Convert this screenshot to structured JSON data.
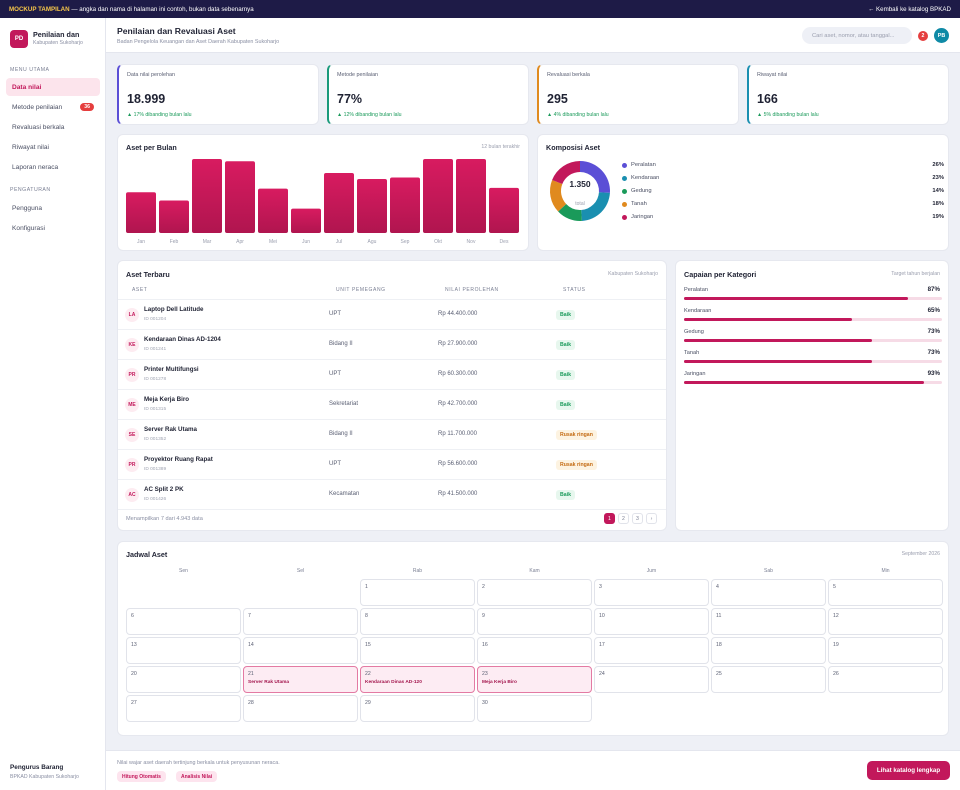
{
  "topbar": {
    "mockup_label": "MOCKUP TAMPILAN",
    "mockup_note": "— angka dan nama di halaman ini contoh, bukan data sebenarnya",
    "back_link": "← Kembali ke katalog BPKAD"
  },
  "brand": {
    "logo": "PD",
    "title": "Penilaian dan",
    "subtitle": "Kabupaten Sukoharjo"
  },
  "sidebar": {
    "main_label": "MENU UTAMA",
    "items": [
      {
        "label": "Data nilai"
      },
      {
        "label": "Metode penilaian",
        "badge": "36"
      },
      {
        "label": "Revaluasi berkala"
      },
      {
        "label": "Riwayat nilai"
      },
      {
        "label": "Laporan neraca"
      }
    ],
    "settings_label": "PENGATURAN",
    "settings_items": [
      {
        "label": "Pengguna"
      },
      {
        "label": "Konfigurasi"
      }
    ],
    "footer_title": "Pengurus Barang",
    "footer_sub": "BPKAD Kabupaten Sukoharjo"
  },
  "header": {
    "title": "Penilaian dan Revaluasi Aset",
    "subtitle": "Badan Pengelola Keuangan dan Aset Daerah Kabupaten Sukoharjo",
    "search_placeholder": "Cari aset, nomor, atau tanggal...",
    "notif_count": "2",
    "avatar": "PB"
  },
  "stats": [
    {
      "label": "Data nilai perolehan",
      "value": "18.999",
      "change": "▲ 17% dibanding bulan lalu",
      "color": "#5b4fd6"
    },
    {
      "label": "Metode penilaian",
      "value": "77%",
      "change": "▲ 12% dibanding bulan lalu",
      "color": "#1a9a7a"
    },
    {
      "label": "Revaluasi berkala",
      "value": "295",
      "change": "▲ 4% dibanding bulan lalu",
      "color": "#e08a1e"
    },
    {
      "label": "Riwayat nilai",
      "value": "166",
      "change": "▲ 5% dibanding bulan lalu",
      "color": "#1a8fb0"
    }
  ],
  "bar_card": {
    "title": "Aset per Bulan",
    "note": "12 bulan terakhir"
  },
  "donut_card": {
    "title": "Komposisi Aset",
    "center_value": "1.350",
    "center_label": "total"
  },
  "chart_data": [
    {
      "type": "bar",
      "title": "Aset per Bulan",
      "categories": [
        "Jan",
        "Feb",
        "Mar",
        "Apr",
        "Mei",
        "Jun",
        "Jul",
        "Agu",
        "Sep",
        "Okt",
        "Nov",
        "Des"
      ],
      "values": [
        55,
        44,
        100,
        97,
        60,
        33,
        81,
        73,
        75,
        100,
        100,
        61
      ],
      "ylim": [
        0,
        100
      ],
      "grid": false,
      "color": "#c2185b"
    },
    {
      "type": "pie",
      "title": "Komposisi Aset",
      "labels": [
        "Peralatan",
        "Kendaraan",
        "Gedung",
        "Tanah",
        "Jaringan"
      ],
      "values": [
        26,
        23,
        14,
        18,
        19
      ],
      "colors": [
        "#5b4fd6",
        "#1a8fb0",
        "#1a9a5a",
        "#e08a1e",
        "#c2185b"
      ],
      "percent_labels": [
        "26%",
        "23%",
        "14%",
        "18%",
        "19%"
      ],
      "legend": "right"
    }
  ],
  "table": {
    "title": "Aset Terbaru",
    "note": "Kabupaten Sukoharjo",
    "columns": [
      "ASET",
      "UNIT PEMEGANG",
      "NILAI PEROLEHAN",
      "STATUS"
    ],
    "rows": [
      {
        "ini": "LA",
        "name": "Laptop Dell Latitude",
        "id": "ID 001204",
        "unit": "UPT",
        "value": "Rp 44.400.000",
        "status": "Baik",
        "warn": false
      },
      {
        "ini": "KE",
        "name": "Kendaraan Dinas AD-1204",
        "id": "ID 001241",
        "unit": "Bidang II",
        "value": "Rp 27.900.000",
        "status": "Baik",
        "warn": false
      },
      {
        "ini": "PR",
        "name": "Printer Multifungsi",
        "id": "ID 001278",
        "unit": "UPT",
        "value": "Rp 60.300.000",
        "status": "Baik",
        "warn": false
      },
      {
        "ini": "ME",
        "name": "Meja Kerja Biro",
        "id": "ID 001315",
        "unit": "Sekretariat",
        "value": "Rp 42.700.000",
        "status": "Baik",
        "warn": false
      },
      {
        "ini": "SE",
        "name": "Server Rak Utama",
        "id": "ID 001352",
        "unit": "Bidang II",
        "value": "Rp 11.700.000",
        "status": "Rusak ringan",
        "warn": true
      },
      {
        "ini": "PR",
        "name": "Proyektor Ruang Rapat",
        "id": "ID 001389",
        "unit": "UPT",
        "value": "Rp 56.600.000",
        "status": "Rusak ringan",
        "warn": true
      },
      {
        "ini": "AC",
        "name": "AC Split 2 PK",
        "id": "ID 001426",
        "unit": "Kecamatan",
        "value": "Rp 41.500.000",
        "status": "Baik",
        "warn": false
      }
    ],
    "footer": "Menampilkan 7 dari 4.943 data",
    "pages": [
      "1",
      "2",
      "3",
      "›"
    ]
  },
  "capaian": {
    "title": "Capaian per Kategori",
    "note": "Target tahun berjalan",
    "items": [
      {
        "label": "Peralatan",
        "pct_text": "87%",
        "pct": 0.87
      },
      {
        "label": "Kendaraan",
        "pct_text": "65%",
        "pct": 0.65
      },
      {
        "label": "Gedung",
        "pct_text": "73%",
        "pct": 0.73
      },
      {
        "label": "Tanah",
        "pct_text": "73%",
        "pct": 0.73
      },
      {
        "label": "Jaringan",
        "pct_text": "93%",
        "pct": 0.93
      }
    ]
  },
  "calendar": {
    "title": "Jadwal Aset",
    "month": "September 2026",
    "days": [
      "Sen",
      "Sel",
      "Rab",
      "Kam",
      "Jum",
      "Sab",
      "Min"
    ],
    "first_col": 2,
    "count": 30,
    "events": {
      "21": "Server Rak Utama",
      "22": "Kendaraan Dinas AD-120",
      "23": "Meja Kerja Biro"
    }
  },
  "footer": {
    "text": "Nilai wajar aset daerah tertinjung berkala untuk penyusunan neraca.",
    "chips": [
      "Hitung Otomatis",
      "Analisis Nilai"
    ],
    "cta": "Lihat katalog lengkap"
  }
}
